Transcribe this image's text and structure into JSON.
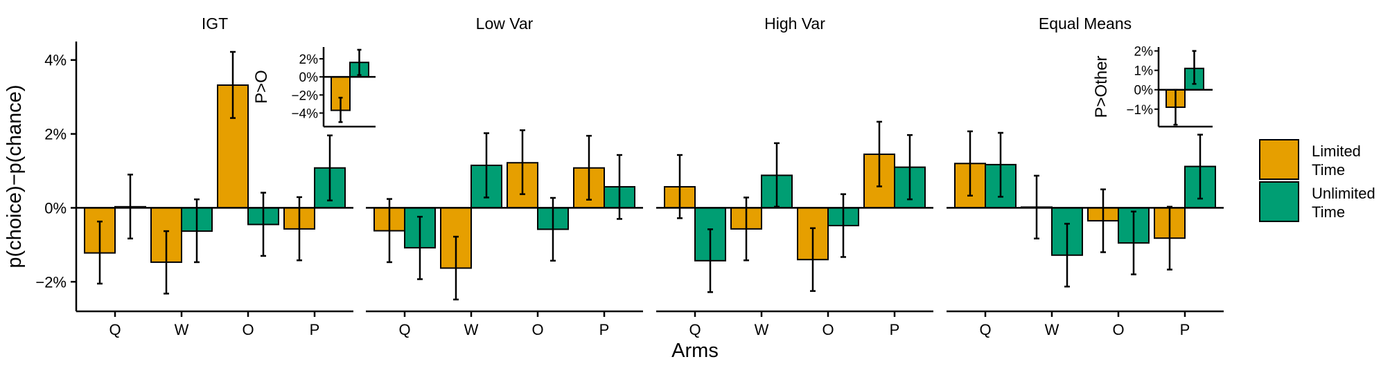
{
  "chart_data": {
    "type": "bar",
    "xlabel": "Arms",
    "ylabel": "p(choice)−p(chance)",
    "ylim": [
      -0.028,
      0.045
    ],
    "yticks": [
      -0.02,
      0,
      0.02,
      0.04
    ],
    "ytick_labels": [
      "−2%",
      "0%",
      "2%",
      "4%"
    ],
    "categories": [
      "Q",
      "W",
      "O",
      "P"
    ],
    "legend": {
      "placement": "right",
      "entries": [
        {
          "label_lines": [
            "Limited",
            "Time"
          ],
          "color": "#E69F00"
        },
        {
          "label_lines": [
            "Unlimited",
            "Time"
          ],
          "color": "#009E73"
        }
      ]
    },
    "grid": false,
    "panels": [
      {
        "title": "IGT",
        "series": [
          {
            "values": [
              -0.0122,
              -0.0147,
              0.0332,
              -0.0057
            ],
            "err_low": [
              -0.0205,
              -0.0232,
              0.0243,
              -0.0142
            ],
            "err_high": [
              -0.0037,
              -0.0063,
              0.0422,
              0.0029
            ],
            "color": "#E69F00"
          },
          {
            "values": [
              0.0003,
              -0.0063,
              -0.0045,
              0.0108
            ],
            "err_low": [
              -0.0083,
              -0.0147,
              -0.013,
              0.002
            ],
            "err_high": [
              0.009,
              0.0023,
              0.0041,
              0.0196
            ],
            "color": "#009E73"
          }
        ],
        "inset": {
          "title": "P>O",
          "ylim": [
            -0.055,
            0.033
          ],
          "yticks": [
            -0.04,
            -0.02,
            0,
            0.02
          ],
          "ytick_labels": [
            "−4%",
            "−2%",
            "0%",
            "2%"
          ],
          "values": [
            -0.037,
            0.016
          ],
          "err_low": [
            -0.05,
            0.002
          ],
          "err_high": [
            -0.023,
            0.03
          ]
        }
      },
      {
        "title": "Low Var",
        "series": [
          {
            "values": [
              -0.0062,
              -0.0163,
              0.0122,
              0.0108
            ],
            "err_low": [
              -0.0147,
              -0.0248,
              0.0037,
              0.0022
            ],
            "err_high": [
              0.0024,
              -0.0078,
              0.021,
              0.0195
            ],
            "color": "#E69F00"
          },
          {
            "values": [
              -0.0108,
              0.0115,
              -0.0058,
              0.0057
            ],
            "err_low": [
              -0.0193,
              0.0028,
              -0.0143,
              -0.003
            ],
            "err_high": [
              -0.0024,
              0.0202,
              0.0027,
              0.0143
            ],
            "color": "#009E73"
          }
        ]
      },
      {
        "title": "High Var",
        "series": [
          {
            "values": [
              0.0057,
              -0.0057,
              -0.014,
              0.0145
            ],
            "err_low": [
              -0.0028,
              -0.0142,
              -0.0225,
              0.0058
            ],
            "err_high": [
              0.0143,
              0.0028,
              -0.0055,
              0.0233
            ],
            "color": "#E69F00"
          },
          {
            "values": [
              -0.0143,
              0.0088,
              -0.0048,
              0.011
            ],
            "err_low": [
              -0.0228,
              0.0003,
              -0.0133,
              0.0023
            ],
            "err_high": [
              -0.0058,
              0.0175,
              0.0037,
              0.0197
            ],
            "color": "#009E73"
          }
        ]
      },
      {
        "title": "Equal Means",
        "series": [
          {
            "values": [
              0.012,
              0.0002,
              -0.0035,
              -0.0082
            ],
            "err_low": [
              0.0033,
              -0.0083,
              -0.012,
              -0.0167
            ],
            "err_high": [
              0.0207,
              0.0087,
              0.005,
              0.0003
            ],
            "color": "#E69F00"
          },
          {
            "values": [
              0.0117,
              -0.0128,
              -0.0095,
              0.0112
            ],
            "err_low": [
              0.003,
              -0.0213,
              -0.018,
              0.0025
            ],
            "err_high": [
              0.0203,
              -0.0043,
              -0.001,
              0.0198
            ],
            "color": "#009E73"
          }
        ],
        "inset": {
          "title": "P>Other",
          "ylim": [
            -0.019,
            0.022
          ],
          "yticks": [
            -0.01,
            0,
            0.01,
            0.02
          ],
          "ytick_labels": [
            "−1%",
            "0%",
            "1%",
            "2%"
          ],
          "values": [
            -0.009,
            0.011
          ],
          "err_low": [
            -0.018,
            0.003
          ],
          "err_high": [
            -0.0,
            0.02
          ]
        }
      }
    ]
  }
}
